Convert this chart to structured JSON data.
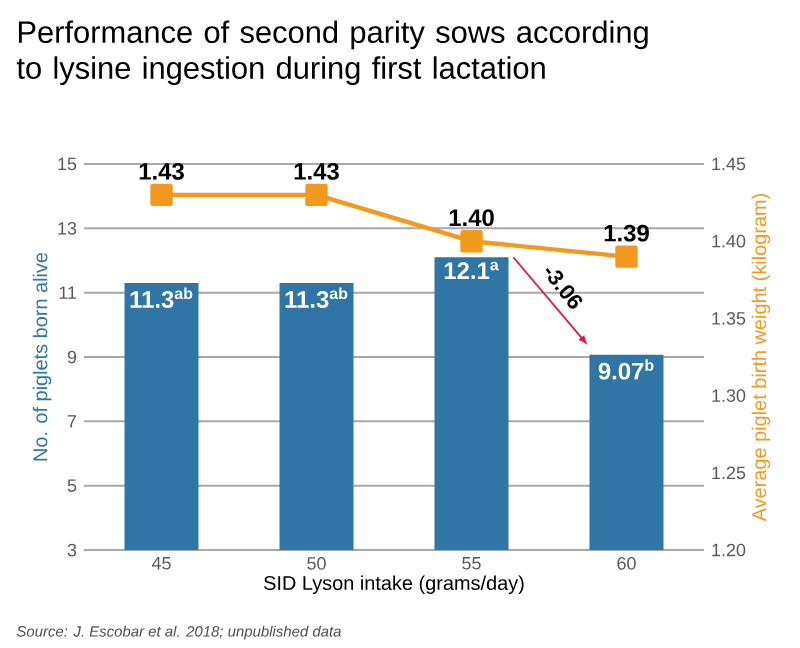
{
  "chart_data": {
    "type": "bar",
    "title": "Performance of second parity sows according to lysine ingestion during first lactation",
    "xlabel": "SID Lyson intake (grams/day)",
    "ylabel": "No. of piglets born alive",
    "y2label": "Average piglet birth weight (kilogram)",
    "categories": [
      "45",
      "50",
      "55",
      "60"
    ],
    "series": [
      {
        "color": "#2f76a6",
        "values": [
          11.3,
          11.3,
          12.1,
          9.07
        ],
        "value_labels": [
          "11.3$^{ab}$",
          "11.3$^{ab}$",
          "12.1$^{a}$",
          "9.07$^{b}$"
        ]
      },
      {
        "type": "line",
        "axis": "y2",
        "color": "#f39a1e",
        "marker": "square",
        "values": [
          1.43,
          1.43,
          1.4,
          1.39
        ],
        "value_labels": [
          "1.43",
          "1.43",
          "1.40",
          "1.39"
        ]
      }
    ],
    "ylim": [
      3,
      15
    ],
    "yticks": [
      3,
      5,
      7,
      9,
      11,
      13,
      15
    ],
    "y2lim": [
      1.2,
      1.45
    ],
    "y2ticks": [
      {
        "value": 1.2,
        "label": "1.20"
      },
      {
        "value": 1.25,
        "label": "1.25"
      },
      {
        "value": 1.3,
        "label": "1.30"
      },
      {
        "value": 1.35,
        "label": "1.35"
      },
      {
        "value": 1.4,
        "label": "1.40"
      },
      {
        "value": 1.45,
        "label": "1.45"
      }
    ],
    "grid": "y",
    "annotations": [
      {
        "text": "-3.06",
        "x": "60",
        "y": 9.07
      },
      "Source: J. Escobar et al. 2018; unpublished data"
    ]
  }
}
